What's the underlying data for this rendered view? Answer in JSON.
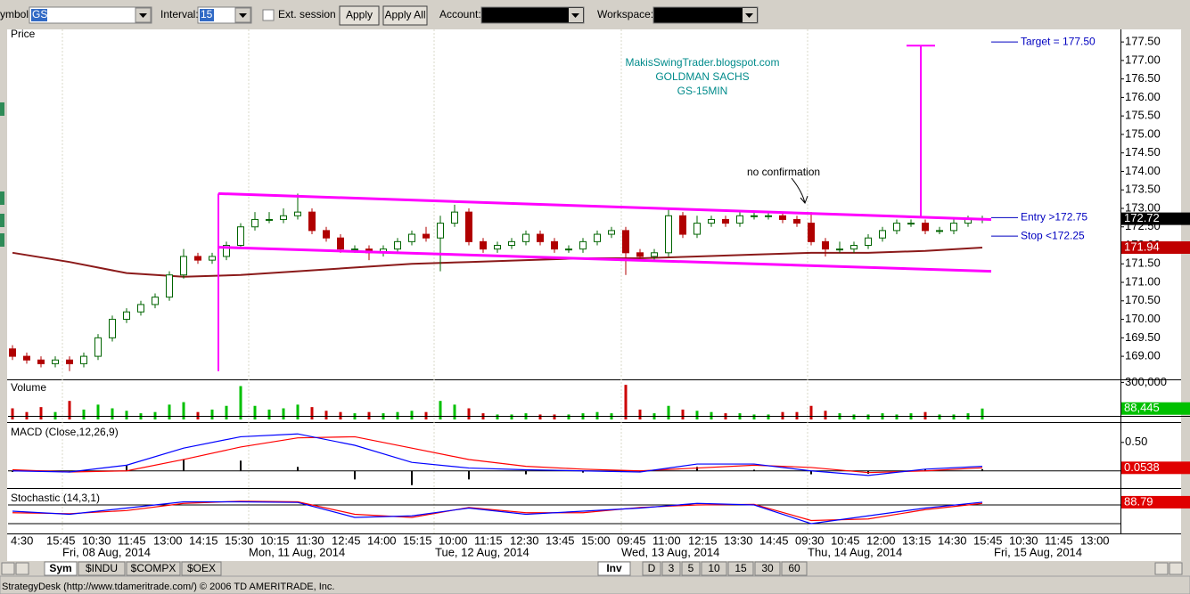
{
  "toolbar": {
    "symbol_label": "ymbol:",
    "symbol": "GS",
    "interval_label": "Interval:",
    "interval": "15",
    "ext_session": "Ext. session",
    "apply": "Apply",
    "apply_all": "Apply All",
    "account_label": "Account:",
    "workspace_label": "Workspace:"
  },
  "time_axis": {
    "times": [
      "4:30",
      "15:45",
      "10:30",
      "11:45",
      "13:00",
      "14:15",
      "15:30",
      "10:15",
      "11:30",
      "12:45",
      "14:00",
      "15:15",
      "10:00",
      "11:15",
      "12:30",
      "13:45",
      "15:00",
      "09:45",
      "11:00",
      "12:15",
      "13:30",
      "14:45",
      "09:30",
      "10:45",
      "12:00",
      "13:15",
      "14:30",
      "15:45",
      "10:30",
      "11:45",
      "13:00"
    ],
    "days": [
      "Fri, 08 Aug, 2014",
      "Mon, 11 Aug, 2014",
      "Tue, 12 Aug, 2014",
      "Wed, 13 Aug, 2014",
      "Thu, 14 Aug, 2014",
      "Fri, 15 Aug, 2014"
    ]
  },
  "tabs": {
    "left": [
      "Sym",
      "$INDU",
      "$COMPX",
      "$OEX"
    ],
    "right": [
      "Inv",
      "D",
      "3",
      "5",
      "10",
      "15",
      "30",
      "60"
    ]
  },
  "status": "StrategyDesk (http://www.tdameritrade.com/) © 2006 TD AMERITRADE, Inc.",
  "chart_data": [
    {
      "type": "candlestick",
      "title": "Price",
      "open": [
        169.2,
        169.0,
        168.9,
        168.8,
        168.9,
        168.8,
        169.0,
        169.5,
        170.0,
        170.2,
        170.4,
        170.6,
        171.2,
        171.7,
        171.6,
        171.7,
        172.0,
        172.5,
        172.7,
        172.7,
        172.8,
        172.9,
        172.4,
        172.2,
        171.9,
        171.9,
        171.8,
        171.9,
        172.1,
        172.3,
        172.2,
        172.6,
        172.9,
        172.1,
        171.9,
        172.0,
        172.1,
        172.3,
        172.1,
        171.9,
        171.9,
        172.1,
        172.3,
        172.4,
        171.8,
        171.7,
        171.8,
        172.8,
        172.3,
        172.6,
        172.7,
        172.6,
        172.8,
        172.8,
        172.8,
        172.7,
        172.6,
        172.1,
        171.9,
        171.9,
        172.0,
        172.2,
        172.4,
        172.6,
        172.6,
        172.4,
        172.4,
        172.6,
        172.7
      ],
      "high": [
        169.3,
        169.1,
        169.0,
        169.0,
        169.0,
        169.1,
        169.6,
        170.1,
        170.3,
        170.5,
        170.7,
        171.3,
        171.9,
        171.8,
        171.8,
        172.1,
        172.6,
        172.9,
        172.9,
        173.0,
        173.4,
        173.0,
        172.5,
        172.3,
        172.0,
        172.0,
        172.0,
        172.2,
        172.4,
        172.5,
        172.8,
        173.1,
        173.0,
        172.2,
        172.1,
        172.2,
        172.4,
        172.4,
        172.2,
        172.0,
        172.2,
        172.4,
        172.5,
        172.5,
        171.9,
        171.9,
        173.0,
        172.9,
        172.8,
        172.8,
        172.8,
        172.9,
        172.9,
        172.9,
        172.9,
        172.8,
        172.9,
        172.2,
        172.1,
        172.1,
        172.3,
        172.5,
        172.7,
        172.7,
        172.7,
        172.5,
        172.7,
        172.8,
        172.8
      ],
      "low": [
        168.9,
        168.8,
        168.7,
        168.7,
        168.6,
        168.7,
        168.9,
        169.4,
        169.9,
        170.1,
        170.3,
        170.5,
        171.1,
        171.5,
        171.5,
        171.6,
        171.9,
        172.4,
        172.6,
        172.6,
        172.7,
        172.3,
        172.1,
        171.8,
        171.8,
        171.6,
        171.7,
        171.8,
        172.0,
        172.1,
        171.3,
        172.5,
        172.0,
        171.8,
        171.8,
        171.9,
        172.0,
        172.0,
        171.8,
        171.8,
        171.8,
        172.0,
        172.2,
        171.2,
        171.6,
        171.6,
        171.7,
        172.2,
        172.2,
        172.5,
        172.5,
        172.5,
        172.7,
        172.7,
        172.6,
        172.5,
        172.0,
        171.7,
        171.8,
        171.8,
        171.9,
        172.1,
        172.3,
        172.5,
        172.3,
        172.3,
        172.3,
        172.5,
        172.6
      ],
      "close": [
        169.0,
        168.9,
        168.8,
        168.9,
        168.8,
        169.0,
        169.5,
        170.0,
        170.2,
        170.4,
        170.6,
        171.2,
        171.7,
        171.6,
        171.7,
        172.0,
        172.5,
        172.7,
        172.7,
        172.8,
        172.9,
        172.4,
        172.2,
        171.9,
        171.9,
        171.8,
        171.9,
        172.1,
        172.3,
        172.2,
        172.6,
        172.9,
        172.1,
        171.9,
        172.0,
        172.1,
        172.3,
        172.1,
        171.9,
        171.9,
        172.1,
        172.3,
        172.4,
        171.8,
        171.7,
        171.8,
        172.8,
        172.3,
        172.6,
        172.7,
        172.6,
        172.8,
        172.8,
        172.8,
        172.7,
        172.6,
        172.1,
        171.9,
        171.9,
        172.0,
        172.2,
        172.4,
        172.6,
        172.6,
        172.4,
        172.4,
        172.6,
        172.7,
        172.72
      ],
      "up_color": "#006400",
      "down_color": "#b00000",
      "ma": {
        "x": [
          0,
          4,
          8,
          12,
          16,
          20,
          24,
          28,
          32,
          36,
          40,
          44,
          48,
          52,
          56,
          60,
          64,
          68
        ],
        "values": [
          171.8,
          171.55,
          171.25,
          171.15,
          171.2,
          171.3,
          171.4,
          171.5,
          171.55,
          171.6,
          171.65,
          171.65,
          171.7,
          171.75,
          171.8,
          171.8,
          171.85,
          171.94
        ],
        "color": "#8b1a1a"
      },
      "ylim": [
        168.4,
        177.84
      ],
      "yticks": [
        {
          "value": 169,
          "label": "169.00"
        },
        {
          "value": 169.5,
          "label": "169.50"
        },
        {
          "value": 170,
          "label": "170.00"
        },
        {
          "value": 170.5,
          "label": "170.50"
        },
        {
          "value": 171,
          "label": "171.00"
        },
        {
          "value": 171.5,
          "label": "171.50"
        },
        {
          "value": 172,
          "label": "172.00"
        },
        {
          "value": 172.5,
          "label": "172.50"
        },
        {
          "value": 173,
          "label": "173.00"
        },
        {
          "value": 173.5,
          "label": "173.50"
        },
        {
          "value": 174,
          "label": "174.00"
        },
        {
          "value": 174.5,
          "label": "174.50"
        },
        {
          "value": 175,
          "label": "175.00"
        },
        {
          "value": 175.5,
          "label": "175.50"
        },
        {
          "value": 176,
          "label": "176.00"
        },
        {
          "value": 176.5,
          "label": "176.50"
        },
        {
          "value": 177,
          "label": "177.00"
        },
        {
          "value": 177.5,
          "label": "177.50"
        }
      ],
      "channel": {
        "upper": [
          173.4,
          172.7
        ],
        "lower": [
          171.95,
          171.3
        ],
        "pole_low": 168.6,
        "target_high": 177.4,
        "color": "#ff00ff"
      },
      "levels": [
        {
          "text": "Target = 177.50",
          "value": 177.5
        },
        {
          "text": "Entry >172.75",
          "value": 172.75
        },
        {
          "text": "Stop <172.25",
          "value": 172.25
        }
      ],
      "watermark": [
        "MakisSwingTrader.blogspot.com",
        "GOLDMAN SACHS",
        "GS-15MIN"
      ],
      "note": "no confirmation"
    },
    {
      "type": "bar",
      "title": "Volume",
      "values": [
        90000,
        60000,
        100000,
        60000,
        150000,
        80000,
        120000,
        90000,
        70000,
        50000,
        60000,
        120000,
        140000,
        60000,
        80000,
        110000,
        270000,
        110000,
        80000,
        90000,
        120000,
        100000,
        70000,
        60000,
        50000,
        60000,
        50000,
        60000,
        70000,
        60000,
        150000,
        120000,
        90000,
        50000,
        40000,
        40000,
        50000,
        40000,
        40000,
        40000,
        50000,
        60000,
        50000,
        280000,
        80000,
        50000,
        110000,
        80000,
        70000,
        60000,
        50000,
        50000,
        40000,
        40000,
        60000,
        60000,
        110000,
        70000,
        50000,
        40000,
        40000,
        50000,
        40000,
        50000,
        60000,
        40000,
        40000,
        50000,
        88445
      ],
      "last_value_label": "88,445",
      "up_color": "#00c000",
      "down_color": "#cc0000",
      "ylim": [
        0,
        310000
      ],
      "yticks": [
        {
          "value": 300000,
          "label": "300,000"
        }
      ]
    },
    {
      "type": "line",
      "title": "MACD (Close,12,26,9)",
      "x": [
        0,
        4,
        8,
        12,
        16,
        20,
        24,
        28,
        32,
        36,
        40,
        44,
        48,
        52,
        56,
        60,
        64,
        68
      ],
      "series": [
        {
          "color": "#0000ff",
          "values": [
            0.0,
            -0.02,
            0.1,
            0.4,
            0.6,
            0.65,
            0.45,
            0.15,
            0.05,
            0.02,
            0.0,
            -0.02,
            0.12,
            0.12,
            0.0,
            -0.08,
            0.03,
            0.08
          ]
        },
        {
          "color": "#ff0000",
          "values": [
            0.02,
            -0.02,
            0.0,
            0.2,
            0.42,
            0.58,
            0.6,
            0.4,
            0.2,
            0.08,
            0.03,
            0.0,
            0.05,
            0.1,
            0.06,
            -0.03,
            0.0,
            0.0538
          ]
        }
      ],
      "histogram": [
        -0.02,
        0,
        0.1,
        0.2,
        0.18,
        0.07,
        -0.15,
        -0.25,
        -0.15,
        -0.06,
        -0.03,
        -0.02,
        0.07,
        0.02,
        -0.06,
        -0.05,
        0.03,
        0.03
      ],
      "ylim": [
        -0.27,
        0.81
      ],
      "yticks": [
        {
          "value": 0.5,
          "label": "0.50"
        }
      ],
      "zero_line": true
    },
    {
      "type": "line",
      "title": "Stochastic (14,3,1)",
      "x": [
        0,
        4,
        8,
        12,
        16,
        20,
        24,
        28,
        32,
        36,
        40,
        44,
        48,
        52,
        56,
        60,
        64,
        68
      ],
      "series": [
        {
          "color": "#0000ff",
          "values": [
            60,
            50,
            70,
            90,
            90,
            88,
            40,
            45,
            70,
            50,
            60,
            70,
            85,
            80,
            20,
            45,
            70,
            88.79
          ]
        },
        {
          "color": "#ff0000",
          "values": [
            55,
            52,
            62,
            85,
            92,
            90,
            50,
            40,
            72,
            55,
            55,
            72,
            80,
            82,
            30,
            35,
            65,
            85
          ]
        }
      ],
      "ylim": [
        -8.6,
        125.7
      ],
      "levels": [
        20,
        80
      ]
    }
  ]
}
